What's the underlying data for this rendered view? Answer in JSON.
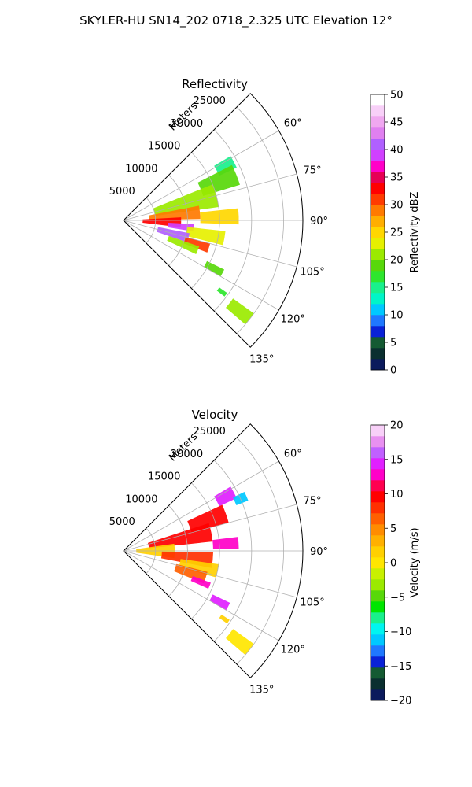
{
  "figure": {
    "title": "SKYLER-HU  SN14_202  0718_2.325 UTC Elevation 12°"
  },
  "chart_data": [
    {
      "type": "heatmap",
      "projection": "polar-sector",
      "title": "Reflectivity",
      "radial_label": "Meters",
      "radial_ticks": [
        "5000",
        "10000",
        "15000",
        "20000",
        "25000"
      ],
      "radial_values": [
        5000,
        10000,
        15000,
        20000,
        25000
      ],
      "r_max": 28000,
      "theta_range_deg": [
        45,
        135
      ],
      "theta_ticks": [
        "60°",
        "75°",
        "90°",
        "105°",
        "120°",
        "135°"
      ],
      "theta_values": [
        60,
        75,
        90,
        105,
        120,
        135
      ],
      "grid": true,
      "colorbar": {
        "label": "Reflectivity dBZ",
        "min": 0,
        "max": 50,
        "ticks": [
          "0",
          "5",
          "10",
          "15",
          "20",
          "25",
          "30",
          "35",
          "40",
          "45",
          "50"
        ],
        "tick_values": [
          0,
          5,
          10,
          15,
          20,
          25,
          30,
          35,
          40,
          45,
          50
        ],
        "colors": [
          "#0b1a5c",
          "#0a2f2f",
          "#145a32",
          "#0a22d6",
          "#1f78ff",
          "#00c8ff",
          "#00f5c8",
          "#19f08c",
          "#2ee62e",
          "#58d80a",
          "#9bea00",
          "#e6f000",
          "#ffd700",
          "#ffae00",
          "#ff7a00",
          "#ff3b00",
          "#ff0000",
          "#e60055",
          "#ff00c8",
          "#d040ff",
          "#b060ff",
          "#e080f0",
          "#f0a8f0",
          "#f8d0f8",
          "#ffffff"
        ]
      },
      "regions": [
        {
          "theta": 62,
          "r": 18000,
          "dt": 6,
          "dr": 3000,
          "value": 14
        },
        {
          "theta": 68,
          "r": 16000,
          "dt": 10,
          "dr": 6000,
          "value": 18
        },
        {
          "theta": 75,
          "r": 10000,
          "dt": 14,
          "dr": 10000,
          "value": 20
        },
        {
          "theta": 84,
          "r": 8000,
          "dt": 10,
          "dr": 8000,
          "value": 28
        },
        {
          "theta": 88,
          "r": 15000,
          "dt": 8,
          "dr": 6000,
          "value": 24
        },
        {
          "theta": 92,
          "r": 6000,
          "dt": 10,
          "dr": 6000,
          "value": 32
        },
        {
          "theta": 96,
          "r": 9000,
          "dt": 6,
          "dr": 4000,
          "value": 38
        },
        {
          "theta": 100,
          "r": 13000,
          "dt": 8,
          "dr": 6000,
          "value": 22
        },
        {
          "theta": 105,
          "r": 8000,
          "dt": 8,
          "dr": 5000,
          "value": 40
        },
        {
          "theta": 108,
          "r": 12000,
          "dt": 6,
          "dr": 4000,
          "value": 30
        },
        {
          "theta": 112,
          "r": 10000,
          "dt": 6,
          "dr": 5000,
          "value": 20
        },
        {
          "theta": 118,
          "r": 16000,
          "dt": 4,
          "dr": 3000,
          "value": 18
        },
        {
          "theta": 128,
          "r": 23000,
          "dt": 5,
          "dr": 4000,
          "value": 20
        },
        {
          "theta": 126,
          "r": 19000,
          "dt": 2,
          "dr": 1500,
          "value": 16
        }
      ]
    },
    {
      "type": "heatmap",
      "projection": "polar-sector",
      "title": "Velocity",
      "radial_label": "Meters",
      "radial_ticks": [
        "5000",
        "10000",
        "15000",
        "20000",
        "25000"
      ],
      "radial_values": [
        5000,
        10000,
        15000,
        20000,
        25000
      ],
      "r_max": 28000,
      "theta_range_deg": [
        45,
        135
      ],
      "theta_ticks": [
        "60°",
        "75°",
        "90°",
        "105°",
        "120°",
        "135°"
      ],
      "theta_values": [
        60,
        75,
        90,
        105,
        120,
        135
      ],
      "grid": true,
      "colorbar": {
        "label": "Velocity (m/s)",
        "min": -20,
        "max": 20,
        "ticks": [
          "−20",
          "−15",
          "−10",
          "−5",
          "0",
          "5",
          "10",
          "15",
          "20"
        ],
        "tick_values": [
          -20,
          -15,
          -10,
          -5,
          0,
          5,
          10,
          15,
          20
        ],
        "colors": [
          "#0b1a5c",
          "#0a2f2f",
          "#145a32",
          "#0a22d6",
          "#1f78ff",
          "#00c8ff",
          "#00f5f0",
          "#19f08c",
          "#00e600",
          "#58d80a",
          "#9bea00",
          "#c8f000",
          "#ffe600",
          "#ffd000",
          "#ffb000",
          "#ff8c00",
          "#ff6000",
          "#ff3000",
          "#ff0000",
          "#ff0050",
          "#ff00c8",
          "#e020ff",
          "#c060ff",
          "#e890f0",
          "#f8d0f8"
        ]
      },
      "regions": [
        {
          "theta": 62,
          "r": 18000,
          "dt": 6,
          "dr": 3000,
          "value": 14
        },
        {
          "theta": 66,
          "r": 20000,
          "dt": 4,
          "dr": 2000,
          "value": -12
        },
        {
          "theta": 70,
          "r": 14000,
          "dt": 10,
          "dr": 6000,
          "value": 9
        },
        {
          "theta": 78,
          "r": 9000,
          "dt": 12,
          "dr": 10000,
          "value": 10
        },
        {
          "theta": 86,
          "r": 16000,
          "dt": 6,
          "dr": 4000,
          "value": 13
        },
        {
          "theta": 90,
          "r": 5000,
          "dt": 16,
          "dr": 6000,
          "value": 1
        },
        {
          "theta": 96,
          "r": 10000,
          "dt": 10,
          "dr": 8000,
          "value": 8
        },
        {
          "theta": 102,
          "r": 12000,
          "dt": 8,
          "dr": 6000,
          "value": 2
        },
        {
          "theta": 108,
          "r": 11000,
          "dt": 8,
          "dr": 5000,
          "value": 6
        },
        {
          "theta": 112,
          "r": 13000,
          "dt": 4,
          "dr": 3000,
          "value": 12
        },
        {
          "theta": 118,
          "r": 17000,
          "dt": 4,
          "dr": 3000,
          "value": 14
        },
        {
          "theta": 128,
          "r": 23000,
          "dt": 5,
          "dr": 4000,
          "value": 0
        },
        {
          "theta": 124,
          "r": 19000,
          "dt": 2,
          "dr": 1500,
          "value": 2
        }
      ]
    }
  ]
}
